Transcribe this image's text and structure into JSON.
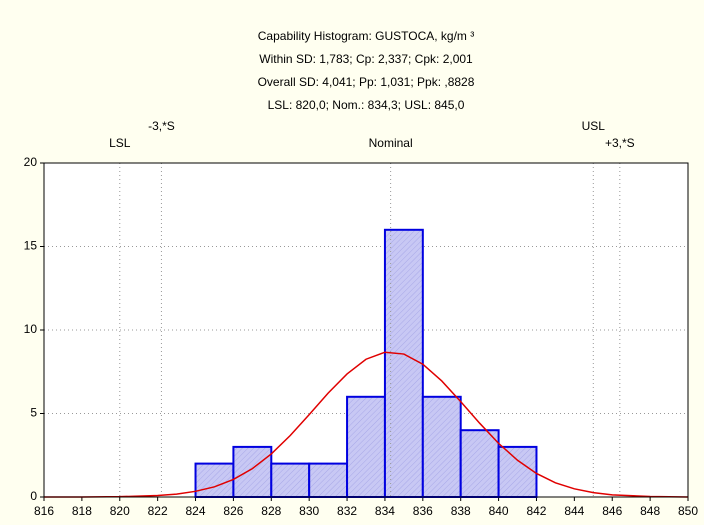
{
  "chart_data": {
    "type": "histogram",
    "title": "Capability Histogram: GUSTOCA, kg/m ³",
    "subtitles": [
      "Within SD: 1,783; Cp: 2,337; Cpk: 2,001",
      "Overall SD: 4,041; Pp: 1,031; Ppk: ,8828",
      "LSL: 820,0; Nom.: 834,3; USL: 845,0"
    ],
    "bins": [
      824,
      826,
      828,
      830,
      832,
      834,
      836,
      838,
      840,
      842
    ],
    "counts": [
      2,
      3,
      2,
      2,
      6,
      16,
      6,
      4,
      3
    ],
    "color": "#0000e0",
    "fill": "#c8c8f4",
    "curve": {
      "color": "#e00000",
      "x": [
        816,
        818,
        820,
        822,
        823,
        824,
        825,
        826,
        827,
        828,
        829,
        830,
        831,
        832,
        833,
        834,
        835,
        836,
        837,
        838,
        839,
        840,
        841,
        842,
        843,
        844,
        845,
        846,
        848,
        850
      ],
      "values": [
        0,
        0,
        0.02,
        0.09,
        0.17,
        0.34,
        0.61,
        1.05,
        1.7,
        2.58,
        3.68,
        4.93,
        6.22,
        7.37,
        8.25,
        8.67,
        8.56,
        7.95,
        6.95,
        5.71,
        4.42,
        3.21,
        2.2,
        1.41,
        0.85,
        0.49,
        0.26,
        0.13,
        0.03,
        0
      ]
    },
    "spec_lines": [
      {
        "label": "LSL",
        "x": 820
      },
      {
        "label": "-3,*S",
        "x": 822.2
      },
      {
        "label": "Nominal",
        "x": 834.3
      },
      {
        "label": "USL",
        "x": 845
      },
      {
        "label": "+3,*S",
        "x": 846.4
      }
    ],
    "xlim": [
      816,
      850
    ],
    "xticks": [
      816,
      818,
      820,
      822,
      824,
      826,
      828,
      830,
      832,
      834,
      836,
      838,
      840,
      842,
      844,
      846,
      848,
      850
    ],
    "ylim": [
      0,
      20
    ],
    "yticks": [
      0,
      5,
      10,
      15,
      20
    ],
    "grid": true
  }
}
